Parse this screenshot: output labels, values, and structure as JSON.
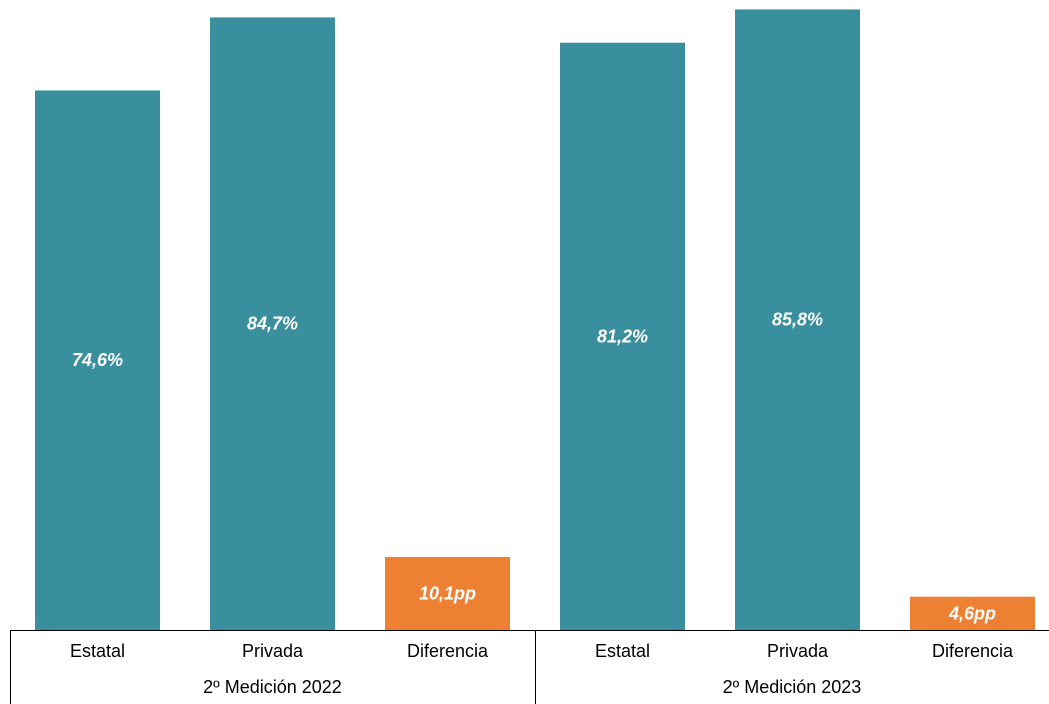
{
  "chart_data": {
    "type": "bar",
    "title": "",
    "xlabel": "",
    "ylabel": "",
    "ylim": [
      0,
      86
    ],
    "grid": false,
    "legend": "none",
    "colors": {
      "series": "#3a8f9f",
      "difference": "#ee8033",
      "text_on_bar": "#ffffff",
      "axis": "#000000"
    },
    "groups": [
      {
        "label": "2º Medición 2022",
        "bars": [
          {
            "category": "Estatal",
            "value": 74.6,
            "label": "74,6%",
            "kind": "series"
          },
          {
            "category": "Privada",
            "value": 84.7,
            "label": "84,7%",
            "kind": "series"
          },
          {
            "category": "Diferencia",
            "value": 10.1,
            "label": "10,1pp",
            "kind": "difference"
          }
        ]
      },
      {
        "label": "2º Medición 2023",
        "bars": [
          {
            "category": "Estatal",
            "value": 81.2,
            "label": "81,2%",
            "kind": "series"
          },
          {
            "category": "Privada",
            "value": 85.8,
            "label": "85,8%",
            "kind": "series"
          },
          {
            "category": "Diferencia",
            "value": 4.6,
            "label": "4,6pp",
            "kind": "difference"
          }
        ]
      }
    ]
  }
}
